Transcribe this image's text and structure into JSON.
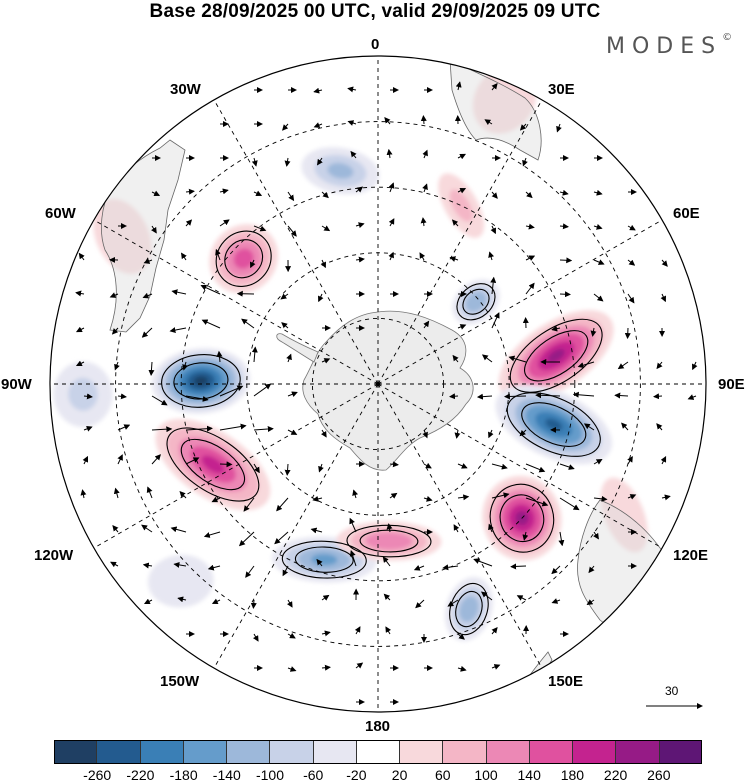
{
  "header": {
    "title": "Base 28/09/2025 00 UTC, valid 29/09/2025 09 UTC",
    "brand": "MODES",
    "brand_mark": "©"
  },
  "longitude_labels": [
    "0",
    "30E",
    "60E",
    "90E",
    "120E",
    "150E",
    "180",
    "150W",
    "120W",
    "90W",
    "60W",
    "30W"
  ],
  "reference_vector": {
    "label": "30"
  },
  "colorbar": {
    "colors": [
      "#1f3f63",
      "#235b8f",
      "#3a7fb6",
      "#659ccb",
      "#9db8da",
      "#c8d2e8",
      "#e7e7f2",
      "#ffffff",
      "#f8d9dc",
      "#f4b6c6",
      "#ec88b5",
      "#e0519f",
      "#c4238f",
      "#961b86",
      "#5e1675"
    ],
    "ticks": [
      "-260",
      "-220",
      "-180",
      "-140",
      "-100",
      "-60",
      "-20",
      "20",
      "60",
      "100",
      "140",
      "180",
      "220",
      "260"
    ]
  },
  "anomaly_cells": [
    {
      "name": "cell-west-1",
      "angle": 271,
      "r": 0.54,
      "rot": -6,
      "a": 0.15,
      "b": 0.1,
      "value": -270
    },
    {
      "name": "cell-east-1",
      "angle": 81,
      "r": 0.55,
      "rot": -25,
      "a": 0.2,
      "b": 0.1,
      "value": 225
    },
    {
      "name": "cell-east-2",
      "angle": 103,
      "r": 0.55,
      "rot": 12,
      "a": 0.19,
      "b": 0.1,
      "value": -225
    },
    {
      "name": "cell-se-1",
      "angle": 133,
      "r": 0.6,
      "rot": 30,
      "a": 0.13,
      "b": 0.12,
      "value": 230
    },
    {
      "name": "cell-sw-1",
      "angle": 244,
      "r": 0.56,
      "rot": 60,
      "a": 0.2,
      "b": 0.1,
      "value": 190
    },
    {
      "name": "cell-s-1",
      "angle": 197,
      "r": 0.56,
      "rot": 75,
      "a": 0.16,
      "b": 0.07,
      "value": -150
    },
    {
      "name": "cell-s-2",
      "angle": 176,
      "r": 0.48,
      "rot": 95,
      "a": 0.16,
      "b": 0.06,
      "value": 135
    },
    {
      "name": "cell-s-3",
      "angle": 158,
      "r": 0.74,
      "rot": 40,
      "a": 0.1,
      "b": 0.07,
      "value": -125
    },
    {
      "name": "cell-nw-1",
      "angle": 313,
      "r": 0.56,
      "rot": 0,
      "a": 0.1,
      "b": 0.11,
      "value": 160
    },
    {
      "name": "cell-n-1",
      "angle": 350,
      "r": 0.66,
      "rot": -70,
      "a": 0.12,
      "b": 0.07,
      "value": -110
    },
    {
      "name": "cell-ne-1",
      "angle": 50,
      "r": 0.39,
      "rot": 0,
      "a": 0.08,
      "b": 0.06,
      "value": -135
    },
    {
      "name": "cell-ne-2",
      "angle": 25,
      "r": 0.6,
      "rot": -55,
      "a": 0.11,
      "b": 0.05,
      "value": 70
    },
    {
      "name": "cell-n-2",
      "angle": 24,
      "r": 0.95,
      "rot": 10,
      "a": 0.11,
      "b": 0.09,
      "value": 55
    },
    {
      "name": "cell-nw-2",
      "angle": 300,
      "r": 0.9,
      "rot": 35,
      "a": 0.12,
      "b": 0.08,
      "value": 45
    },
    {
      "name": "cell-w-2",
      "angle": 268,
      "r": 0.9,
      "rot": 0,
      "a": 0.09,
      "b": 0.1,
      "value": -70
    },
    {
      "name": "cell-e-3",
      "angle": 118,
      "r": 0.85,
      "rot": 40,
      "a": 0.12,
      "b": 0.06,
      "value": 45
    },
    {
      "name": "cell-sw-2",
      "angle": 225,
      "r": 0.85,
      "rot": 40,
      "a": 0.1,
      "b": 0.08,
      "value": -40
    }
  ]
}
